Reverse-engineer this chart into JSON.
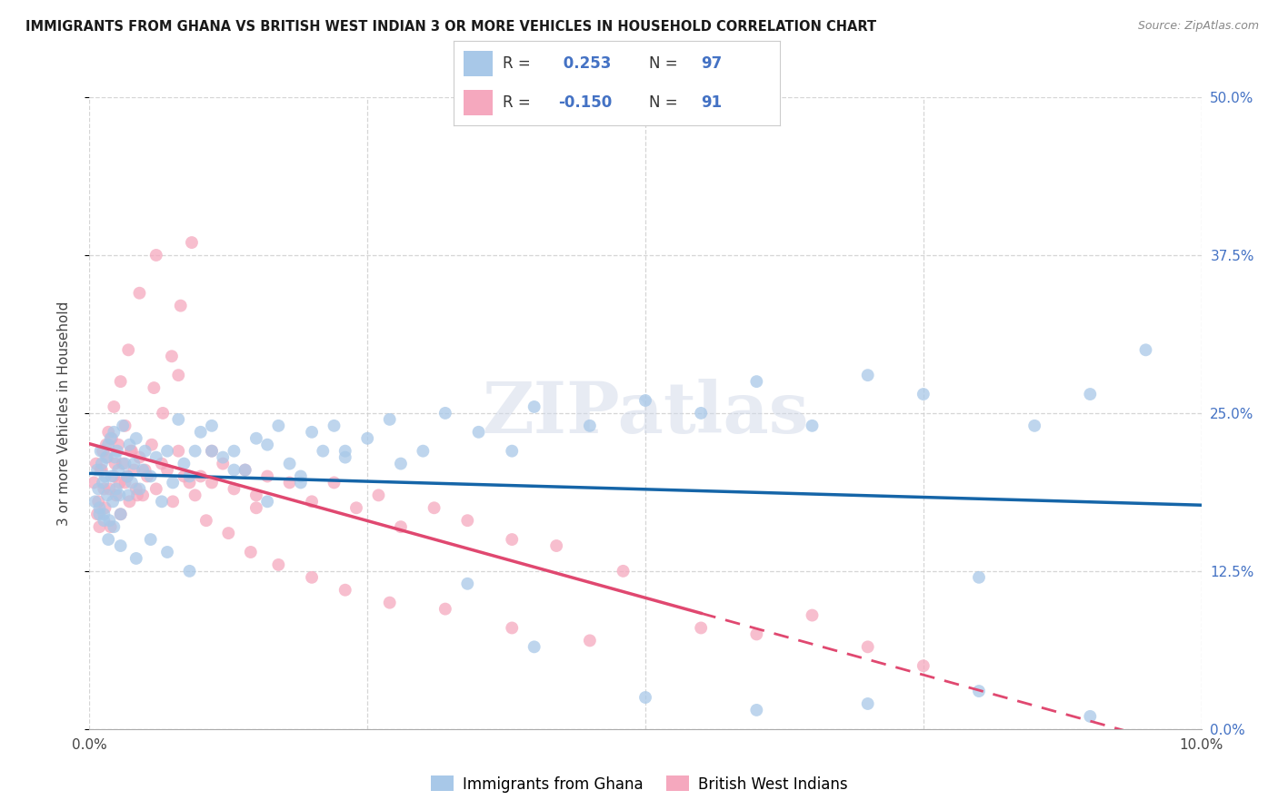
{
  "title": "IMMIGRANTS FROM GHANA VS BRITISH WEST INDIAN 3 OR MORE VEHICLES IN HOUSEHOLD CORRELATION CHART",
  "source": "Source: ZipAtlas.com",
  "ylabel": "3 or more Vehicles in Household",
  "xmin": 0.0,
  "xmax": 10.0,
  "ymin": 0.0,
  "ymax": 50.0,
  "ytick_vals": [
    0.0,
    12.5,
    25.0,
    37.5,
    50.0
  ],
  "ytick_labels_right": [
    "0.0%",
    "12.5%",
    "25.0%",
    "37.5%",
    "50.0%"
  ],
  "ghana_R": 0.253,
  "ghana_N": 97,
  "bwi_R": -0.15,
  "bwi_N": 91,
  "ghana_color": "#a8c8e8",
  "bwi_color": "#f5a8be",
  "ghana_line_color": "#1565a8",
  "bwi_line_color": "#e04870",
  "background_color": "#ffffff",
  "grid_color": "#cccccc",
  "legend_label_ghana": "Immigrants from Ghana",
  "legend_label_bwi": "British West Indians",
  "watermark": "ZIPatlas",
  "ghana_x": [
    0.05,
    0.07,
    0.08,
    0.09,
    0.1,
    0.11,
    0.12,
    0.13,
    0.14,
    0.15,
    0.16,
    0.17,
    0.18,
    0.19,
    0.2,
    0.21,
    0.22,
    0.23,
    0.24,
    0.25,
    0.26,
    0.27,
    0.28,
    0.3,
    0.32,
    0.34,
    0.36,
    0.38,
    0.4,
    0.42,
    0.45,
    0.48,
    0.5,
    0.55,
    0.6,
    0.65,
    0.7,
    0.75,
    0.8,
    0.85,
    0.9,
    0.95,
    1.0,
    1.1,
    1.2,
    1.3,
    1.4,
    1.5,
    1.6,
    1.7,
    1.8,
    1.9,
    2.0,
    2.1,
    2.2,
    2.3,
    2.5,
    2.7,
    3.0,
    3.2,
    3.5,
    3.8,
    4.0,
    4.5,
    5.0,
    5.5,
    6.0,
    6.5,
    7.0,
    7.5,
    8.0,
    8.5,
    9.0,
    9.5,
    0.09,
    0.13,
    0.17,
    0.22,
    0.28,
    0.35,
    0.42,
    0.55,
    0.7,
    0.9,
    1.1,
    1.3,
    1.6,
    1.9,
    2.3,
    2.8,
    3.4,
    4.0,
    5.0,
    6.0,
    7.0,
    8.0,
    9.0
  ],
  "ghana_y": [
    18.0,
    20.5,
    19.0,
    17.5,
    22.0,
    21.0,
    19.5,
    17.0,
    20.0,
    21.5,
    18.5,
    22.5,
    16.5,
    23.0,
    20.0,
    18.0,
    23.5,
    21.5,
    19.0,
    22.0,
    20.5,
    18.5,
    17.0,
    24.0,
    21.0,
    20.0,
    22.5,
    19.5,
    21.0,
    23.0,
    19.0,
    20.5,
    22.0,
    20.0,
    21.5,
    18.0,
    22.0,
    19.5,
    24.5,
    21.0,
    20.0,
    22.0,
    23.5,
    24.0,
    21.5,
    22.0,
    20.5,
    23.0,
    22.5,
    24.0,
    21.0,
    20.0,
    23.5,
    22.0,
    24.0,
    21.5,
    23.0,
    24.5,
    22.0,
    25.0,
    23.5,
    22.0,
    25.5,
    24.0,
    26.0,
    25.0,
    27.5,
    24.0,
    28.0,
    26.5,
    12.0,
    24.0,
    26.5,
    30.0,
    17.0,
    16.5,
    15.0,
    16.0,
    14.5,
    18.5,
    13.5,
    15.0,
    14.0,
    12.5,
    22.0,
    20.5,
    18.0,
    19.5,
    22.0,
    21.0,
    11.5,
    6.5,
    2.5,
    1.5,
    2.0,
    3.0,
    1.0
  ],
  "bwi_x": [
    0.04,
    0.06,
    0.08,
    0.1,
    0.12,
    0.14,
    0.16,
    0.18,
    0.2,
    0.22,
    0.24,
    0.26,
    0.28,
    0.3,
    0.32,
    0.34,
    0.36,
    0.38,
    0.4,
    0.42,
    0.45,
    0.48,
    0.52,
    0.56,
    0.6,
    0.65,
    0.7,
    0.75,
    0.8,
    0.85,
    0.9,
    0.95,
    1.0,
    1.1,
    1.2,
    1.3,
    1.4,
    1.5,
    1.6,
    1.8,
    2.0,
    2.2,
    2.4,
    2.6,
    2.8,
    3.1,
    3.4,
    3.8,
    4.2,
    4.8,
    5.5,
    6.0,
    6.5,
    7.0,
    7.5,
    0.07,
    0.11,
    0.15,
    0.19,
    0.23,
    0.27,
    0.32,
    0.37,
    0.43,
    0.5,
    0.58,
    0.66,
    0.74,
    0.82,
    0.92,
    1.05,
    1.25,
    1.45,
    1.7,
    2.0,
    2.3,
    2.7,
    3.2,
    3.8,
    4.5,
    0.09,
    0.13,
    0.17,
    0.22,
    0.28,
    0.35,
    0.45,
    0.6,
    0.8,
    1.1,
    1.5
  ],
  "bwi_y": [
    19.5,
    21.0,
    18.0,
    20.5,
    22.0,
    17.5,
    21.5,
    19.0,
    23.0,
    20.0,
    18.5,
    22.5,
    17.0,
    21.0,
    19.5,
    20.0,
    18.0,
    22.0,
    20.5,
    19.0,
    21.5,
    18.5,
    20.0,
    22.5,
    19.0,
    21.0,
    20.5,
    18.0,
    22.0,
    20.0,
    19.5,
    18.5,
    20.0,
    19.5,
    21.0,
    19.0,
    20.5,
    18.5,
    20.0,
    19.5,
    18.0,
    19.5,
    17.5,
    18.5,
    16.0,
    17.5,
    16.5,
    15.0,
    14.5,
    12.5,
    8.0,
    7.5,
    9.0,
    6.5,
    5.0,
    17.0,
    20.5,
    22.5,
    16.0,
    21.0,
    19.5,
    24.0,
    22.0,
    18.5,
    20.5,
    27.0,
    25.0,
    29.5,
    33.5,
    38.5,
    16.5,
    15.5,
    14.0,
    13.0,
    12.0,
    11.0,
    10.0,
    9.5,
    8.0,
    7.0,
    16.0,
    19.0,
    23.5,
    25.5,
    27.5,
    30.0,
    34.5,
    37.5,
    28.0,
    22.0,
    17.5
  ]
}
